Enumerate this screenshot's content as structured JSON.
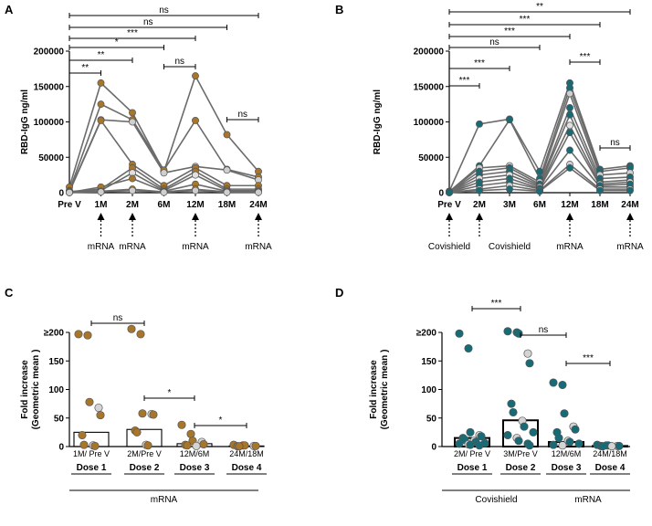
{
  "chart_data": [
    {
      "panel": "A",
      "type": "line",
      "ylabel": "RBD-IgG ng/ml",
      "ylim": [
        0,
        200000
      ],
      "yticks": [
        0,
        50000,
        100000,
        150000,
        200000
      ],
      "ytick_labels": [
        "0",
        "50000",
        "100000",
        "150000",
        "200000"
      ],
      "x": [
        "Pre V",
        "1M",
        "2M",
        "6M",
        "12M",
        "18M",
        "24M"
      ],
      "x_values": [
        0,
        1,
        2,
        3,
        4,
        5,
        6
      ],
      "vaccine_at": [
        1,
        2,
        4,
        6
      ],
      "vaccine_label": "mRNA",
      "color": "#a8762a",
      "series": [
        {
          "values": [
            8000,
            155000,
            113000,
            30000,
            165000,
            82000,
            30000
          ]
        },
        {
          "values": [
            3000,
            125000,
            103000,
            32000,
            102000,
            33000,
            22000
          ]
        },
        {
          "values": [
            2000,
            103000,
            100000,
            28000,
            37000,
            32000,
            18000
          ]
        },
        {
          "values": [
            1000,
            102000,
            40000,
            10000,
            35000,
            10000,
            10000
          ]
        },
        {
          "values": [
            1500,
            5000,
            35000,
            5000,
            30000,
            5000,
            5000
          ]
        },
        {
          "values": [
            500,
            3000,
            28000,
            3000,
            25000,
            3000,
            3000
          ]
        },
        {
          "values": [
            300,
            8000,
            20000,
            2000,
            12000,
            2000,
            2000
          ]
        },
        {
          "values": [
            100,
            2000,
            5000,
            1000,
            5000,
            1000,
            1000
          ]
        },
        {
          "values": [
            200,
            1000,
            3000,
            500,
            3000,
            500,
            500
          ]
        }
      ],
      "significance": [
        {
          "from": 0,
          "to": 1,
          "label": "**"
        },
        {
          "from": 0,
          "to": 2,
          "label": "**"
        },
        {
          "from": 0,
          "to": 3,
          "label": "*"
        },
        {
          "from": 0,
          "to": 4,
          "label": "***"
        },
        {
          "from": 3,
          "to": 4,
          "label": "ns"
        },
        {
          "from": 5,
          "to": 6,
          "label": "ns"
        },
        {
          "from": 0,
          "to": 5,
          "label": "ns"
        },
        {
          "from": 0,
          "to": 6,
          "label": "ns"
        }
      ]
    },
    {
      "panel": "B",
      "type": "line",
      "ylabel": "RBD-IgG ng/ml",
      "ylim": [
        0,
        200000
      ],
      "yticks": [
        0,
        50000,
        100000,
        150000,
        200000
      ],
      "ytick_labels": [
        "0",
        "50000",
        "100000",
        "150000",
        "200000"
      ],
      "x": [
        "Pre V",
        "2M",
        "3M",
        "6M",
        "12M",
        "18M",
        "24M"
      ],
      "x_values": [
        0,
        1,
        2,
        3,
        4,
        5,
        6
      ],
      "vaccine_at": [
        0,
        1,
        4,
        6
      ],
      "vaccine_labels": [
        "Covishield",
        "Covishield",
        "mRNA",
        "mRNA"
      ],
      "vaccine_label_at": [
        0,
        2,
        4,
        6
      ],
      "color": "#176b76",
      "series": [
        {
          "values": [
            2000,
            97000,
            104000,
            30000,
            155000,
            33000,
            38000
          ]
        },
        {
          "values": [
            1500,
            38000,
            103000,
            20000,
            148000,
            30000,
            35000
          ]
        },
        {
          "values": [
            1000,
            35000,
            38000,
            15000,
            140000,
            25000,
            28000
          ]
        },
        {
          "values": [
            800,
            30000,
            35000,
            12000,
            120000,
            20000,
            22000
          ]
        },
        {
          "values": [
            600,
            25000,
            30000,
            10000,
            110000,
            15000,
            18000
          ]
        },
        {
          "values": [
            400,
            20000,
            25000,
            8000,
            95000,
            12000,
            15000
          ]
        },
        {
          "values": [
            300,
            15000,
            20000,
            6000,
            85000,
            10000,
            12000
          ]
        },
        {
          "values": [
            200,
            10000,
            15000,
            5000,
            60000,
            8000,
            8000
          ]
        },
        {
          "values": [
            150,
            5000,
            10000,
            3000,
            40000,
            5000,
            5000
          ]
        },
        {
          "values": [
            100,
            3000,
            5000,
            2000,
            35000,
            3000,
            3000
          ]
        }
      ],
      "significance": [
        {
          "from": 0,
          "to": 1,
          "label": "***"
        },
        {
          "from": 0,
          "to": 2,
          "label": "***"
        },
        {
          "from": 4,
          "to": 5,
          "label": "***"
        },
        {
          "from": 0,
          "to": 3,
          "label": "ns"
        },
        {
          "from": 0,
          "to": 4,
          "label": "***"
        },
        {
          "from": 5,
          "to": 6,
          "label": "ns"
        },
        {
          "from": 0,
          "to": 5,
          "label": "***"
        },
        {
          "from": 0,
          "to": 6,
          "label": "**"
        }
      ]
    },
    {
      "panel": "C",
      "type": "bar",
      "ylabel_lines": [
        "Fold increase",
        "(Geometric mean )"
      ],
      "ylim": [
        0,
        200
      ],
      "yticks": [
        0,
        50,
        100,
        150,
        200
      ],
      "ytick_labels": [
        "0",
        "50",
        "100",
        "150",
        "≥200"
      ],
      "categories": [
        "1M/ Pre V",
        "2M/Pre V",
        "12M/6M",
        "24M/18M"
      ],
      "dose_labels": [
        "Dose 1",
        "Dose 2",
        "Dose 3",
        "Dose 4"
      ],
      "group_label": "mRNA",
      "values": [
        25,
        30,
        5,
        1
      ],
      "color": "#a8762a",
      "points": [
        [
          197,
          195,
          78,
          68,
          55,
          20,
          3,
          2,
          1
        ],
        [
          206,
          197,
          58,
          57,
          56,
          28,
          25,
          3,
          2
        ],
        [
          38,
          22,
          10,
          8,
          4,
          3,
          2,
          1
        ],
        [
          3,
          2,
          2,
          1,
          1,
          0.5,
          0.5
        ]
      ],
      "significance": [
        {
          "from": 0,
          "to": 1,
          "label": "ns"
        },
        {
          "from": 1,
          "to": 2,
          "label": "*"
        },
        {
          "from": 2,
          "to": 3,
          "label": "*"
        }
      ]
    },
    {
      "panel": "D",
      "type": "bar",
      "ylabel_lines": [
        "Fold increase",
        "(Geometric mean )"
      ],
      "ylim": [
        0,
        200
      ],
      "yticks": [
        0,
        50,
        100,
        150,
        200
      ],
      "ytick_labels": [
        "0",
        "50",
        "100",
        "150",
        "≥200"
      ],
      "categories": [
        "2M/ Pre V",
        "3M/Pre V",
        "12M/6M",
        "24M/18M"
      ],
      "dose_labels": [
        "Dose 1",
        "Dose 2",
        "Dose 3",
        "Dose 4"
      ],
      "group_labels": [
        "Covishield",
        "mRNA"
      ],
      "values": [
        15,
        46,
        8,
        1
      ],
      "color": "#176b76",
      "points": [
        [
          198,
          172,
          25,
          20,
          18,
          15,
          12,
          10,
          8,
          6,
          5,
          4,
          3,
          2
        ],
        [
          202,
          200,
          198,
          163,
          146,
          75,
          60,
          45,
          35,
          25,
          20,
          15,
          10,
          5,
          2
        ],
        [
          112,
          108,
          58,
          35,
          30,
          25,
          15,
          10,
          8,
          5,
          3,
          2
        ],
        [
          3,
          2,
          2,
          1,
          1,
          1,
          0.5,
          0.5
        ]
      ],
      "significance": [
        {
          "from": 0,
          "to": 1,
          "label": "***"
        },
        {
          "from": 1,
          "to": 2,
          "label": "ns"
        },
        {
          "from": 2,
          "to": 3,
          "label": "***"
        }
      ]
    }
  ]
}
